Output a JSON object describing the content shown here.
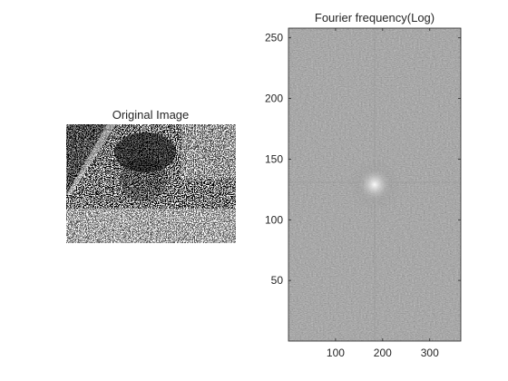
{
  "chart_data": [
    {
      "type": "image",
      "title": "Original Image",
      "axes_visible": false,
      "content": "noisy grayscale photo"
    },
    {
      "type": "heatmap",
      "title": "Fourier frequency(Log)",
      "colormap": "gray",
      "x_ticks": [
        100,
        200,
        300
      ],
      "y_ticks": [
        50,
        100,
        150,
        200,
        250
      ],
      "xlim": [
        0,
        366
      ],
      "ylim": [
        0,
        258
      ],
      "center": [
        183,
        129
      ]
    }
  ]
}
